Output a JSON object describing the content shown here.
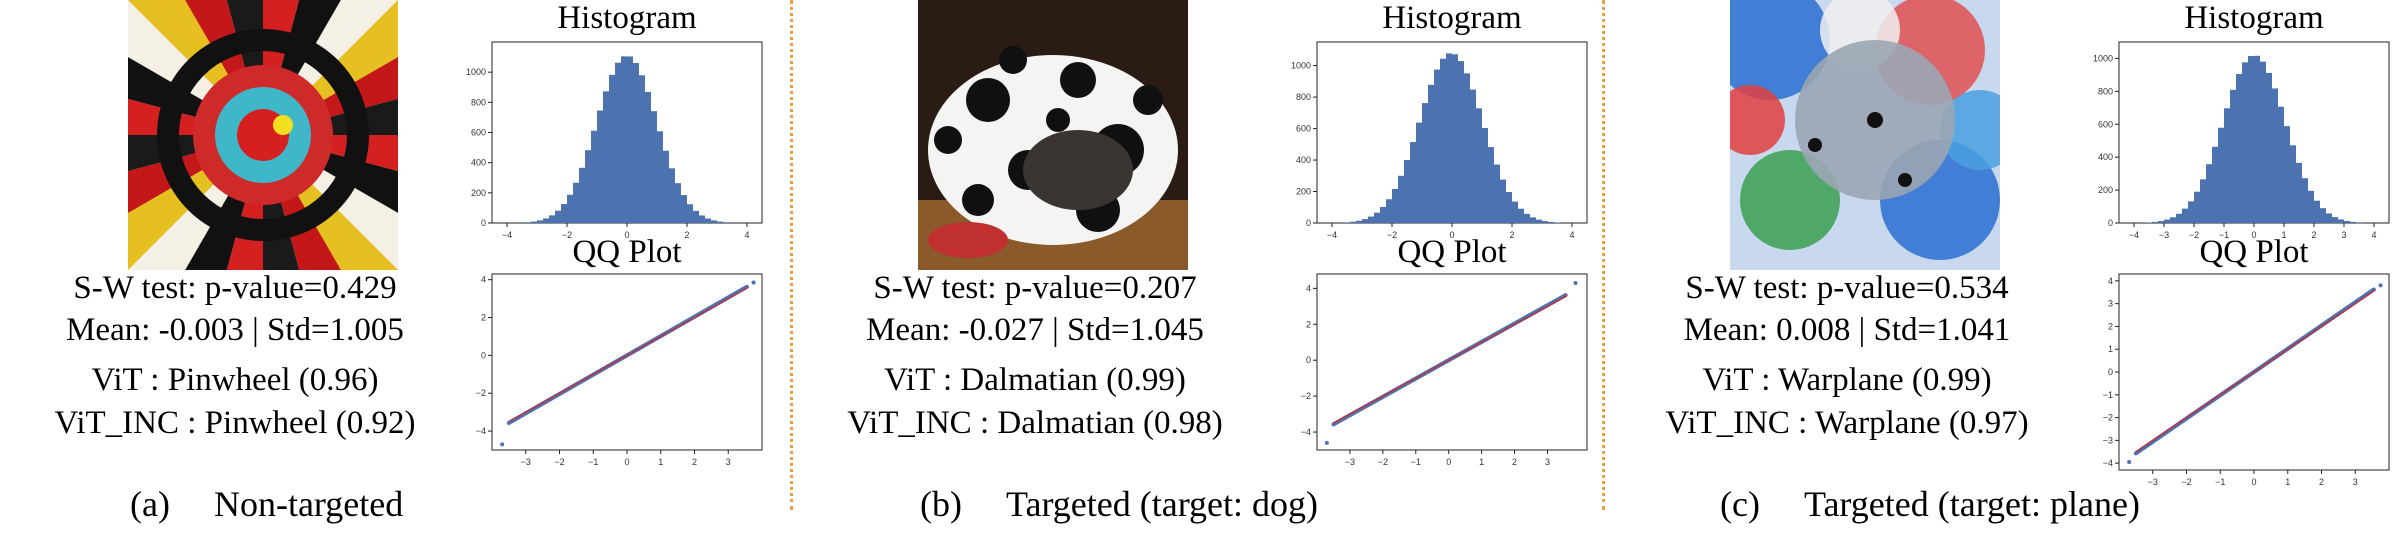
{
  "panels": [
    {
      "label": "(a)",
      "caption": "Non-targeted",
      "sw": "S-W test: p-value=0.429",
      "moments": "Mean: -0.003 | Std=1.005",
      "vit": "ViT : Pinwheel (0.96)",
      "vit_inc": "ViT_INC : Pinwheel (0.92)",
      "image_kind": "pinwheel"
    },
    {
      "label": "(b)",
      "caption": "Targeted (target: dog)",
      "sw": "S-W test: p-value=0.207",
      "moments": "Mean: -0.027 | Std=1.045",
      "vit": "ViT : Dalmatian (0.99)",
      "vit_inc": "ViT_INC : Dalmatian (0.98)",
      "image_kind": "dalmatian"
    },
    {
      "label": "(c)",
      "caption": "Targeted (target: plane)",
      "sw": "S-W test: p-value=0.534",
      "moments": "Mean: 0.008 | Std=1.041",
      "vit": "ViT : Warplane (0.99)",
      "vit_inc": "ViT_INC : Warplane (0.97)",
      "image_kind": "warplane"
    }
  ],
  "colors": {
    "bar": "#4c72b0",
    "qq_points": "#4c72b0",
    "qq_line": "#d62728",
    "separator": "#e8a040"
  },
  "chart_data": [
    {
      "type": "bar",
      "title": "Histogram",
      "xlim": [
        -4.5,
        4.5
      ],
      "ylim": [
        0,
        1200
      ],
      "xticks": [
        -4,
        -2,
        0,
        2,
        4
      ],
      "yticks": [
        0,
        200,
        400,
        600,
        800,
        1000
      ],
      "distribution": {
        "mean": -0.003,
        "std": 1.005,
        "peak": 1110
      }
    },
    {
      "type": "scatter",
      "title": "QQ Plot",
      "xlim": [
        -4,
        4
      ],
      "ylim": [
        -5,
        4.3
      ],
      "xticks": [
        -3,
        -2,
        -1,
        0,
        1,
        2,
        3
      ],
      "yticks": [
        -4,
        -2,
        0,
        2,
        4
      ],
      "ends": [
        [
          -3.7,
          -4.7
        ],
        [
          3.75,
          3.85
        ]
      ]
    },
    {
      "type": "bar",
      "title": "Histogram",
      "xlim": [
        -4.5,
        4.5
      ],
      "ylim": [
        0,
        1150
      ],
      "xticks": [
        -4,
        -2,
        0,
        2,
        4
      ],
      "yticks": [
        0,
        200,
        400,
        600,
        800,
        1000
      ],
      "distribution": {
        "mean": -0.027,
        "std": 1.045,
        "peak": 1080
      }
    },
    {
      "type": "scatter",
      "title": "QQ Plot",
      "xlim": [
        -4,
        4.2
      ],
      "ylim": [
        -5,
        4.8
      ],
      "xticks": [
        -3,
        -2,
        -1,
        0,
        1,
        2,
        3
      ],
      "yticks": [
        -4,
        -2,
        0,
        2,
        4
      ],
      "ends": [
        [
          -3.7,
          -4.6
        ],
        [
          3.85,
          4.3
        ]
      ]
    },
    {
      "type": "bar",
      "title": "Histogram",
      "xlim": [
        -4.5,
        4.5
      ],
      "ylim": [
        0,
        1100
      ],
      "xticks": [
        -4,
        -3,
        -2,
        -1,
        0,
        1,
        2,
        3,
        4
      ],
      "yticks": [
        0,
        200,
        400,
        600,
        800,
        1000
      ],
      "distribution": {
        "mean": 0.008,
        "std": 1.041,
        "peak": 1020
      }
    },
    {
      "type": "scatter",
      "title": "QQ Plot",
      "xlim": [
        -4,
        4
      ],
      "ylim": [
        -4.3,
        4.3
      ],
      "xticks": [
        -3,
        -2,
        -1,
        0,
        1,
        2,
        3
      ],
      "yticks": [
        -4,
        -3,
        -2,
        -1,
        0,
        1,
        2,
        3,
        4
      ],
      "ends": [
        [
          -3.7,
          -3.95
        ],
        [
          3.75,
          3.8
        ]
      ]
    }
  ]
}
